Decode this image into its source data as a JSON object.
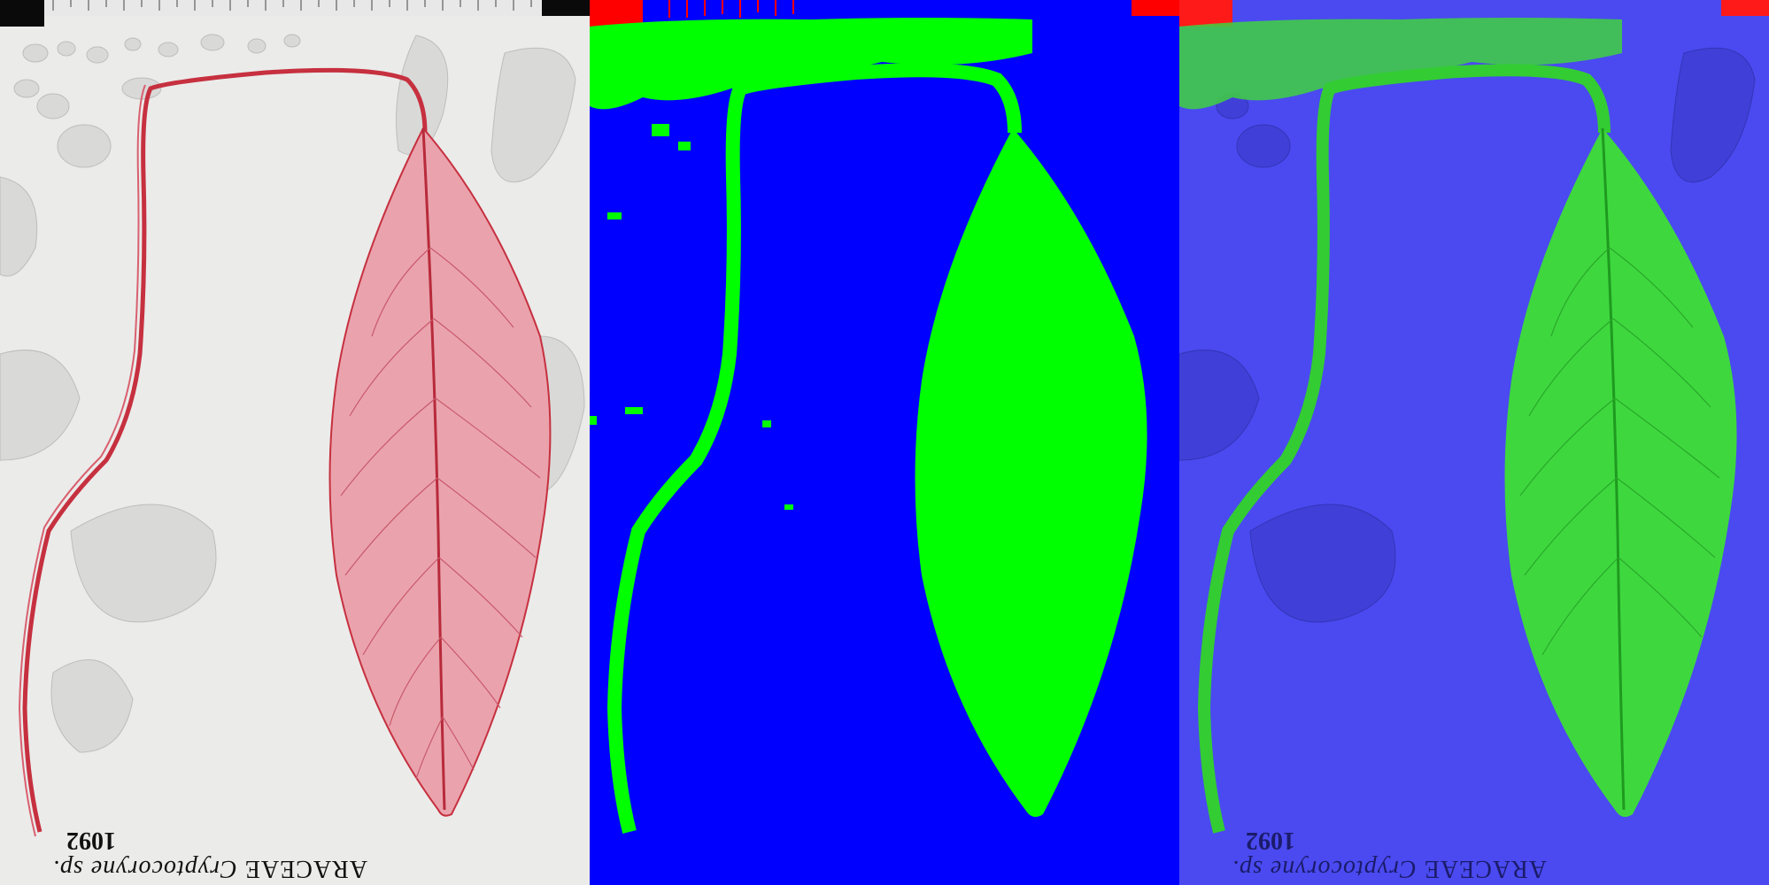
{
  "image": {
    "panels": [
      {
        "name": "original specimen scan"
      },
      {
        "name": "segmentation mask"
      },
      {
        "name": "mask overlay"
      }
    ],
    "label": {
      "family": "ARACEAE",
      "genus": "Cryptocoryne",
      "species": "sp.",
      "number": "1092"
    },
    "colors": {
      "background_paper": "#ececeb",
      "specimen_red": "#d1485c",
      "specimen_fill": "#eaa3ad",
      "mask_background": "#0000ff",
      "mask_foreground": "#00ff00",
      "mask_ruler": "#ff0000",
      "overlay_background": "#4a4af0",
      "overlay_foreground": "#33dd33"
    }
  }
}
